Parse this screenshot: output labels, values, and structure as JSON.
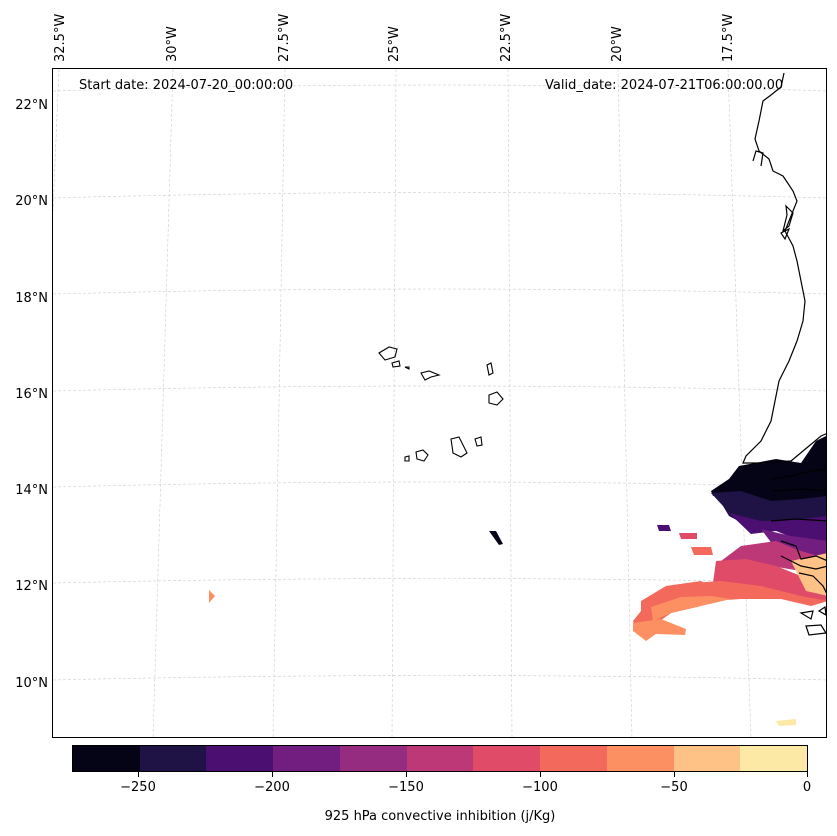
{
  "header": {
    "start_date": "Start date: 2024-07-20_00:00:00",
    "valid_date": "Valid_date: 2024-07-21T06:00:00.00"
  },
  "axes": {
    "lon_labels": [
      "32.5°W",
      "30°W",
      "27.5°W",
      "25°W",
      "22.5°W",
      "20°W",
      "17.5°W"
    ],
    "lat_labels": [
      "22°N",
      "20°N",
      "18°N",
      "16°N",
      "14°N",
      "12°N",
      "10°N"
    ]
  },
  "colorbar": {
    "title": "925 hPa convective inhibition (j/Kg)",
    "tick_labels": [
      "−250",
      "−200",
      "−150",
      "−100",
      "−50",
      "0"
    ],
    "colors": [
      "#050416",
      "#1e1344",
      "#4b0f71",
      "#721d80",
      "#952c80",
      "#bd3877",
      "#e04c67",
      "#f3695c",
      "#fc9063",
      "#fec287",
      "#fde9a6"
    ],
    "range": [
      -275,
      0
    ]
  },
  "colors": {
    "grid": "#cccccc",
    "coast": "#000000"
  }
}
